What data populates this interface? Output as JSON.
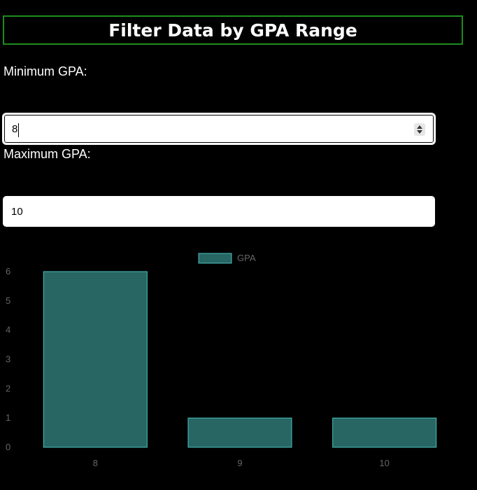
{
  "header": {
    "title": "Filter Data by GPA Range"
  },
  "form": {
    "min_label": "Minimum GPA:",
    "min_value": "8",
    "max_label": "Maximum GPA:",
    "max_value": "10"
  },
  "colors": {
    "title_border": "#1f8c1f",
    "bar_fill": "#276662",
    "bar_stroke": "#4bc0c0"
  },
  "chart_data": {
    "type": "bar",
    "categories": [
      "8",
      "9",
      "10"
    ],
    "series": [
      {
        "name": "GPA",
        "values": [
          6,
          1,
          1
        ]
      }
    ],
    "ylim": [
      0,
      6
    ],
    "yticks": [
      "0",
      "1",
      "2",
      "3",
      "4",
      "5",
      "6"
    ],
    "legend": "top-center",
    "grid": false
  }
}
